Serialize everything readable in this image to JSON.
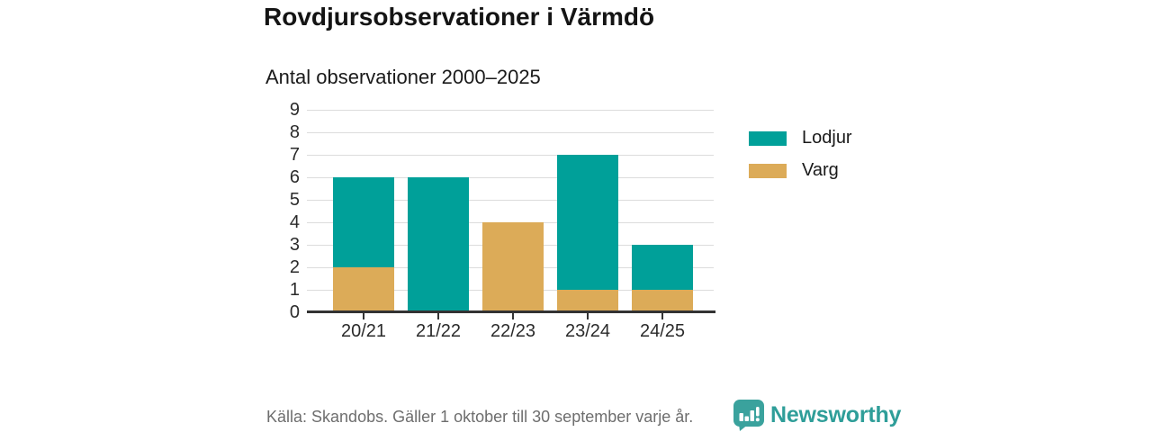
{
  "title": "Rovdjursobservationer i Värmdö",
  "subtitle": "Antal observationer 2000–2025",
  "chart_data": {
    "type": "bar",
    "stacked": true,
    "title": "Rovdjursobservationer i Värmdö",
    "subtitle": "Antal observationer 2000–2025",
    "categories": [
      "20/21",
      "21/22",
      "22/23",
      "23/24",
      "24/25"
    ],
    "series": [
      {
        "name": "Lodjur",
        "color": "#00a099",
        "values": [
          4,
          6,
          0,
          6,
          2
        ]
      },
      {
        "name": "Varg",
        "color": "#dcab58",
        "values": [
          2,
          0,
          4,
          1,
          1
        ]
      }
    ],
    "stack_order_bottom_to_top": [
      "Varg",
      "Lodjur"
    ],
    "totals": [
      6,
      6,
      4,
      7,
      3
    ],
    "xlabel": "",
    "ylabel": "",
    "ylim": [
      0,
      9
    ],
    "yticks": [
      0,
      1,
      2,
      3,
      4,
      5,
      6,
      7,
      8,
      9
    ],
    "grid": "horizontal",
    "legend_position": "right"
  },
  "legend": {
    "items": [
      {
        "label": "Lodjur",
        "color": "#00a099"
      },
      {
        "label": "Varg",
        "color": "#dcab58"
      }
    ]
  },
  "footer": {
    "source": "Källa: Skandobs. Gäller 1 oktober till 30 september varje år.",
    "brand": "Newsworthy"
  },
  "colors": {
    "lodjur": "#00a099",
    "varg": "#dcab58",
    "grid": "#dcdcdc",
    "axis": "#333333",
    "text": "#1a1a1a",
    "muted_text": "#6e6e6e",
    "brand_teal": "#3aa29d"
  }
}
